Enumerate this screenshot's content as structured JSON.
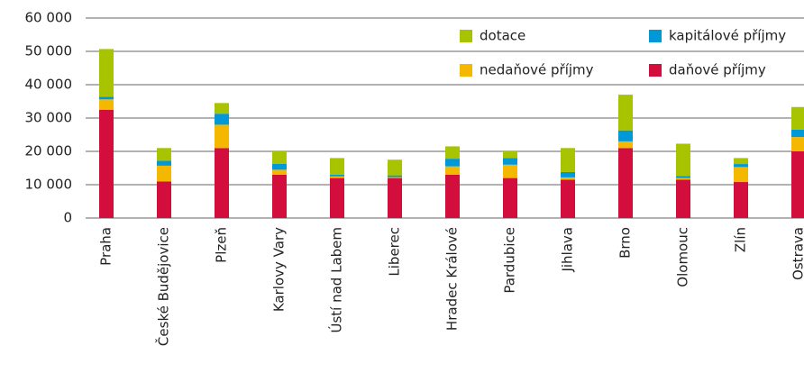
{
  "chart_data": {
    "type": "bar",
    "stacked": true,
    "categories": [
      "Praha",
      "České Budějovice",
      "Plzeň",
      "Karlovy Vary",
      "Ústí nad Labem",
      "Liberec",
      "Hradec Králové",
      "Pardubice",
      "Jihlava",
      "Brno",
      "Olomouc",
      "Zlín",
      "Ostrava"
    ],
    "series": [
      {
        "name": "daňové příjmy",
        "color": "#d20f3c",
        "values": [
          32500,
          11000,
          21000,
          13000,
          12000,
          12000,
          13000,
          12000,
          11500,
          21000,
          11500,
          10800,
          20000
        ]
      },
      {
        "name": "nedaňové příjmy",
        "color": "#f5b800",
        "values": [
          3100,
          4700,
          7000,
          1500,
          500,
          300,
          2500,
          4000,
          700,
          2000,
          500,
          4500,
          4300
        ]
      },
      {
        "name": "kapitálové příjmy",
        "color": "#0098d6",
        "values": [
          800,
          1500,
          3300,
          1800,
          500,
          500,
          2300,
          2000,
          1600,
          3300,
          600,
          900,
          2200
        ]
      },
      {
        "name": "dotace",
        "color": "#a8c300",
        "values": [
          14300,
          3800,
          3200,
          3700,
          5000,
          4700,
          3700,
          2000,
          7200,
          10700,
          9700,
          1800,
          6800
        ]
      }
    ],
    "ylim": [
      0,
      60000
    ],
    "yticks": [
      0,
      {
        "value": 10000,
        "label": "10 000"
      },
      {
        "value": 20000,
        "label": "20 000"
      },
      {
        "value": 30000,
        "label": "30 000"
      },
      {
        "value": 40000,
        "label": "40 000"
      },
      {
        "value": 50000,
        "label": "50 000"
      },
      {
        "value": 60000,
        "label": "60 000"
      }
    ],
    "grid": true,
    "legend": "upper right"
  }
}
